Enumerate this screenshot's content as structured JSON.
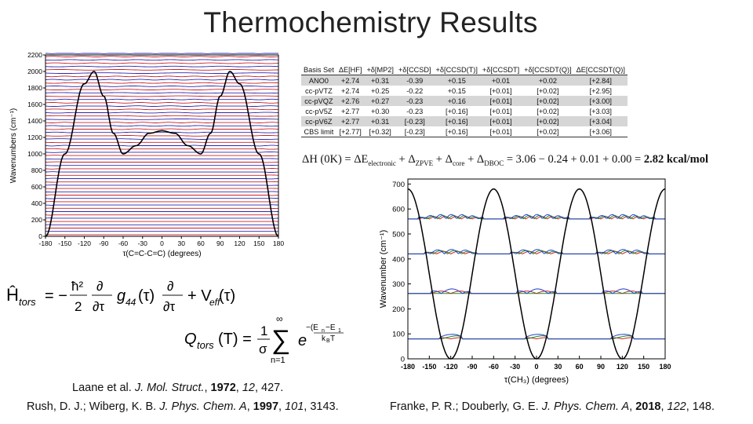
{
  "title": "Thermochemistry Results",
  "table": {
    "headers": [
      "Basis Set",
      "ΔE[HF]",
      "+δ[MP2]",
      "+δ[CCSD]",
      "+δ[CCSD(T)]",
      "+δ[CCSDT]",
      "+δ[CCSDT(Q)]",
      "ΔE[CCSDT(Q)]"
    ],
    "rows": [
      [
        "ANO0",
        "+2.74",
        "+0.31",
        "-0.39",
        "+0.15",
        "+0.01",
        "+0.02",
        "[+2.84]"
      ],
      [
        "cc-pVTZ",
        "+2.74",
        "+0.25",
        "-0.22",
        "+0.15",
        "[+0.01]",
        "[+0.02]",
        "[+2.95]"
      ],
      [
        "cc-pVQZ",
        "+2.76",
        "+0.27",
        "-0.23",
        "+0.16",
        "[+0.01]",
        "[+0.02]",
        "[+3.00]"
      ],
      [
        "cc-pV5Z",
        "+2.77",
        "+0.30",
        "-0.23",
        "[+0.16]",
        "[+0.01]",
        "[+0.02]",
        "[+3.03]"
      ],
      [
        "cc-pV6Z",
        "+2.77",
        "+0.31",
        "[-0.23]",
        "[+0.16]",
        "[+0.01]",
        "[+0.02]",
        "[+3.04]"
      ],
      [
        "CBS limit",
        "[+2.77]",
        "[+0.32]",
        "[-0.23]",
        "[+0.16]",
        "[+0.01]",
        "[+0.02]",
        "[+3.06]"
      ]
    ]
  },
  "enthalpy_equation": {
    "lhs": "ΔH (0K) = ΔE",
    "sub_electronic": "electronic",
    "plus1": " + Δ",
    "sub_zpve": "ZPVE",
    "plus2": " + Δ",
    "sub_core": "core",
    "plus3": " + Δ",
    "sub_dboc": "DBOC",
    "rhs": " = 3.06 − 0.24 + 0.01 + 0.00 = ",
    "result": "2.82 kcal/mol"
  },
  "hamiltonian": {
    "H": "Ĥ",
    "H_sub": "tors",
    "eq": "= −",
    "num": "ħ²",
    "den": "2",
    "d_num": "∂",
    "d_den": "∂τ",
    "g": "g",
    "g_sub": "44",
    "tau": "(τ)",
    "plus": "+ V",
    "v_sub": "eff",
    "v_arg": "(τ)"
  },
  "partition": {
    "Q": "Q",
    "Q_sub": "tors",
    "arg": "(T) =",
    "one": "1",
    "sigma": "σ",
    "sum_top": "∞",
    "sum": "∑",
    "sum_bottom": "n=1",
    "e": "e",
    "exp": "−(E",
    "exp_n": "n",
    "exp_minus": "−E",
    "exp_1": "1",
    "exp_den": "k",
    "exp_B": "B",
    "exp_T": "T"
  },
  "references": {
    "left1": {
      "pre": "Laane et al. ",
      "journal": "J. Mol. Struct.",
      "year": "1972",
      "vol": "12",
      "page": ", 427."
    },
    "left2": {
      "pre": "Rush, D. J.; Wiberg, K. B. ",
      "journal": "J. Phys. Chem. A",
      "year": "1997",
      "vol": "101",
      "page": ", 3143."
    },
    "right": {
      "pre": "Franke, P. R.; Douberly, G. E. ",
      "journal": "J. Phys. Chem. A",
      "year": "2018",
      "vol": "122",
      "page": ", 148."
    }
  },
  "chart_data": [
    {
      "type": "line",
      "ylabel": "Wavenumbers (cm⁻¹)",
      "xlabel": "τ(C=C-C=C) (degrees)",
      "x_ticks": [
        "-180",
        "-150",
        "-120",
        "-90",
        "-60",
        "-30",
        "0",
        "30",
        "60",
        "90",
        "120",
        "150",
        "180"
      ],
      "y_ticks": [
        "0",
        "200",
        "400",
        "600",
        "800",
        "1000",
        "1200",
        "1400",
        "1600",
        "1800",
        "2000",
        "2200"
      ],
      "xlim": [
        -180,
        180
      ],
      "ylim": [
        0,
        2200
      ],
      "series": [
        {
          "role": "potential",
          "color": "#000000",
          "x": [
            -180,
            -150,
            -120,
            -105,
            -90,
            -75,
            -60,
            -40,
            -20,
            0,
            20,
            40,
            60,
            75,
            90,
            105,
            120,
            150,
            180
          ],
          "y": [
            0,
            1000,
            1850,
            2000,
            1700,
            1250,
            1000,
            1100,
            1250,
            1280,
            1250,
            1100,
            1000,
            1250,
            1700,
            2000,
            1850,
            1000,
            0
          ]
        },
        {
          "role": "levels",
          "colors": [
            "#cc2222",
            "#2a2ab0"
          ],
          "spacing": 40,
          "start": 20
        }
      ]
    },
    {
      "type": "line",
      "ylabel": "Wavenumber (cm⁻¹)",
      "xlabel": "τ(CH₃) (degrees)",
      "x_ticks": [
        "-180",
        "-150",
        "-120",
        "-90",
        "-60",
        "-30",
        "0",
        "30",
        "60",
        "90",
        "120",
        "150",
        "180"
      ],
      "y_ticks": [
        "0",
        "100",
        "200",
        "300",
        "400",
        "500",
        "600",
        "700"
      ],
      "xlim": [
        -180,
        180
      ],
      "ylim": [
        0,
        720
      ],
      "series": [
        {
          "role": "potential",
          "color": "#000000",
          "function": "340*(1-cos(3x))"
        },
        {
          "role": "levels",
          "baselines": [
            80,
            262,
            420,
            560
          ],
          "colors": [
            "#cc2222",
            "#228822",
            "#2244cc"
          ]
        }
      ]
    }
  ]
}
